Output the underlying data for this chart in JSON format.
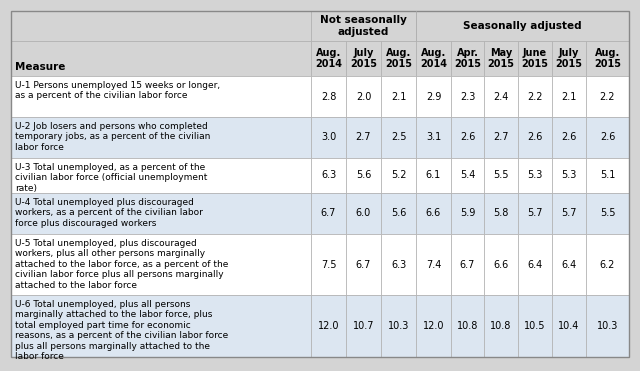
{
  "col_headers_row2": [
    "Measure",
    "Aug.\n2014",
    "July\n2015",
    "Aug.\n2015",
    "Aug.\n2014",
    "Apr.\n2015",
    "May\n2015",
    "June\n2015",
    "July\n2015",
    "Aug.\n2015"
  ],
  "rows": [
    {
      "label": "U-1 Persons unemployed 15 weeks or longer,\nas a percent of the civilian labor force",
      "values": [
        "2.8",
        "2.0",
        "2.1",
        "2.9",
        "2.3",
        "2.4",
        "2.2",
        "2.1",
        "2.2"
      ],
      "shaded": false
    },
    {
      "label": "U-2 Job losers and persons who completed\ntemporary jobs, as a percent of the civilian\nlabor force",
      "values": [
        "3.0",
        "2.7",
        "2.5",
        "3.1",
        "2.6",
        "2.7",
        "2.6",
        "2.6",
        "2.6"
      ],
      "shaded": true
    },
    {
      "label": "U-3 Total unemployed, as a percent of the\ncivilian labor force (official unemployment\nrate)",
      "values": [
        "6.3",
        "5.6",
        "5.2",
        "6.1",
        "5.4",
        "5.5",
        "5.3",
        "5.3",
        "5.1"
      ],
      "shaded": false
    },
    {
      "label": "U-4 Total unemployed plus discouraged\nworkers, as a percent of the civilian labor\nforce plus discouraged workers",
      "values": [
        "6.7",
        "6.0",
        "5.6",
        "6.6",
        "5.9",
        "5.8",
        "5.7",
        "5.7",
        "5.5"
      ],
      "shaded": true
    },
    {
      "label": "U-5 Total unemployed, plus discouraged\nworkers, plus all other persons marginally\nattached to the labor force, as a percent of the\ncivilian labor force plus all persons marginally\nattached to the labor force",
      "values": [
        "7.5",
        "6.7",
        "6.3",
        "7.4",
        "6.7",
        "6.6",
        "6.4",
        "6.4",
        "6.2"
      ],
      "shaded": false
    },
    {
      "label": "U-6 Total unemployed, plus all persons\nmarginally attached to the labor force, plus\ntotal employed part time for economic\nreasons, as a percent of the civilian labor force\nplus all persons marginally attached to the\nlabor force",
      "values": [
        "12.0",
        "10.7",
        "10.3",
        "12.0",
        "10.8",
        "10.8",
        "10.5",
        "10.4",
        "10.3"
      ],
      "shaded": true
    }
  ],
  "bg_color": "#d4d4d4",
  "header_bg": "#d4d4d4",
  "white_bg": "#ffffff",
  "shaded_bg": "#dce6f1",
  "border_color": "#b0b0b0",
  "nsa_header": "Not seasonally\nadjusted",
  "sa_header": "Seasonally adjusted",
  "col0_header": "Measure"
}
